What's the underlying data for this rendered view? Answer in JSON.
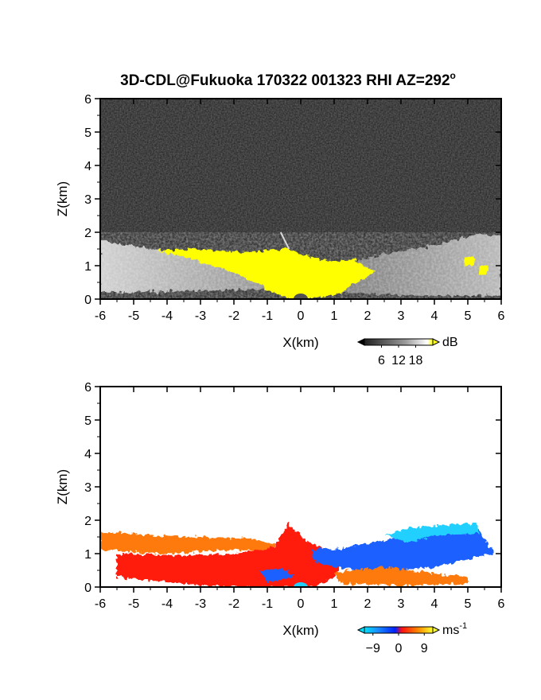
{
  "title": "3D-CDL@Fukuoka 170322 001323 RHI AZ=292",
  "title_sup": "o",
  "chart_data": [
    {
      "type": "heatmap",
      "panel": "reflectivity",
      "xlabel": "X(km)",
      "ylabel": "Z(km)",
      "xlim": [
        -6,
        6
      ],
      "ylim": [
        0,
        6
      ],
      "xticks": [
        "-6",
        "-5",
        "-4",
        "-3",
        "-2",
        "-1",
        "0",
        "1",
        "2",
        "3",
        "4",
        "5",
        "6"
      ],
      "yticks": [
        "0",
        "1",
        "2",
        "3",
        "4",
        "5",
        "6"
      ],
      "colorbar": {
        "unit": "dB",
        "ticks": [
          "6",
          "12",
          "18"
        ],
        "range": [
          0,
          24
        ]
      },
      "regions": [
        {
          "name": "yellow-cone",
          "polygon": [
            [
              -4.3,
              1.45
            ],
            [
              -3.3,
              1.5
            ],
            [
              -1.5,
              1.4
            ],
            [
              -0.4,
              1.5
            ],
            [
              0.5,
              1.2
            ],
            [
              1.0,
              1.1
            ],
            [
              1.6,
              1.2
            ],
            [
              2.2,
              0.8
            ],
            [
              1.2,
              0.2
            ],
            [
              0.4,
              0.0
            ],
            [
              -0.4,
              0.0
            ],
            [
              -2.0,
              0.8
            ],
            [
              -3.2,
              1.2
            ]
          ],
          "value": 20
        },
        {
          "name": "yellow-spot-1",
          "polygon": [
            [
              4.9,
              1.25
            ],
            [
              5.2,
              1.25
            ],
            [
              5.2,
              1.0
            ],
            [
              4.9,
              1.0
            ]
          ],
          "value": 20
        },
        {
          "name": "yellow-spot-2",
          "polygon": [
            [
              5.35,
              1.0
            ],
            [
              5.6,
              1.0
            ],
            [
              5.6,
              0.75
            ],
            [
              5.35,
              0.75
            ]
          ],
          "value": 20
        }
      ],
      "colors": {
        "background": "#1c1c1c",
        "clutter": "#b4b4b4",
        "strong": "#ffff00",
        "ground": "#505050"
      }
    },
    {
      "type": "heatmap",
      "panel": "doppler-velocity",
      "xlabel": "X(km)",
      "ylabel": "Z(km)",
      "xlim": [
        -6,
        6
      ],
      "ylim": [
        0,
        6
      ],
      "xticks": [
        "-6",
        "-5",
        "-4",
        "-3",
        "-2",
        "-1",
        "0",
        "1",
        "2",
        "3",
        "4",
        "5",
        "6"
      ],
      "yticks": [
        "0",
        "1",
        "2",
        "3",
        "4",
        "5",
        "6"
      ],
      "colorbar": {
        "unit": "ms",
        "unit_sup": "-1",
        "ticks": [
          "−9",
          "0",
          "9"
        ],
        "range": [
          -12,
          12
        ]
      },
      "regions": [
        {
          "name": "orange-upper-west",
          "polygon": [
            [
              -6,
              1.65
            ],
            [
              -4.5,
              1.55
            ],
            [
              -3.0,
              1.5
            ],
            [
              -1.5,
              1.45
            ],
            [
              -0.8,
              1.3
            ],
            [
              -0.8,
              1.1
            ],
            [
              -2.5,
              1.1
            ],
            [
              -4.0,
              1.0
            ],
            [
              -6,
              1.1
            ]
          ],
          "value": 7
        },
        {
          "name": "red-core",
          "polygon": [
            [
              -5.5,
              1.0
            ],
            [
              -3.5,
              0.95
            ],
            [
              -2.0,
              1.0
            ],
            [
              -0.8,
              1.2
            ],
            [
              -0.4,
              1.9
            ],
            [
              0.3,
              1.3
            ],
            [
              0.8,
              1.1
            ],
            [
              1.3,
              0.9
            ],
            [
              1.0,
              0.3
            ],
            [
              0.4,
              0.0
            ],
            [
              -2.0,
              0.0
            ],
            [
              -3.5,
              0.1
            ],
            [
              -5.5,
              0.3
            ]
          ],
          "value": 4
        },
        {
          "name": "blue-receding",
          "polygon": [
            [
              0.3,
              1.15
            ],
            [
              1.2,
              1.15
            ],
            [
              2.0,
              1.3
            ],
            [
              3.0,
              1.5
            ],
            [
              4.0,
              1.6
            ],
            [
              5.3,
              1.75
            ],
            [
              5.8,
              1.0
            ],
            [
              5.0,
              0.85
            ],
            [
              4.0,
              0.6
            ],
            [
              3.0,
              0.5
            ],
            [
              2.0,
              0.45
            ],
            [
              1.0,
              0.6
            ],
            [
              0.4,
              0.8
            ]
          ],
          "value": -5
        },
        {
          "name": "cyan-aloft",
          "polygon": [
            [
              2.5,
              1.55
            ],
            [
              3.3,
              1.8
            ],
            [
              4.2,
              1.85
            ],
            [
              5.3,
              1.9
            ],
            [
              5.3,
              1.6
            ],
            [
              4.2,
              1.55
            ],
            [
              3.2,
              1.35
            ]
          ],
          "value": -9
        },
        {
          "name": "red-lower-east",
          "polygon": [
            [
              1.0,
              0.45
            ],
            [
              2.5,
              0.6
            ],
            [
              4.0,
              0.4
            ],
            [
              5.0,
              0.3
            ],
            [
              5.0,
              0.1
            ],
            [
              3.0,
              0.05
            ],
            [
              1.2,
              0.1
            ]
          ],
          "value": 5
        },
        {
          "name": "blue-pocket-west",
          "polygon": [
            [
              -1.2,
              0.5
            ],
            [
              -0.5,
              0.55
            ],
            [
              -0.2,
              0.3
            ],
            [
              -1.0,
              0.15
            ]
          ],
          "value": -6
        }
      ],
      "colors": {
        "background": "#ffffff"
      }
    }
  ]
}
